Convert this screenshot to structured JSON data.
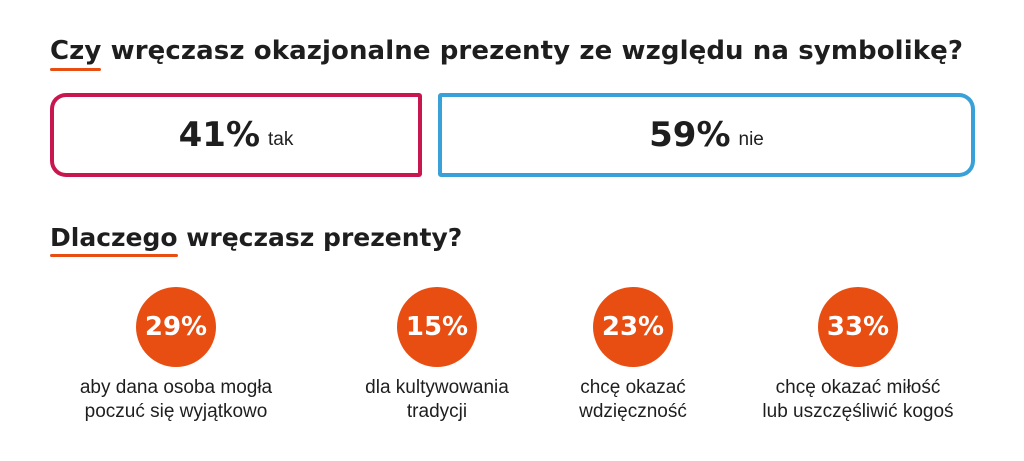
{
  "colors": {
    "tak_border": "#c8174f",
    "nie_border": "#3aa0d8",
    "circle": "#e84e12",
    "underline": "#e84e12",
    "text": "#1e1e1e"
  },
  "question1": {
    "first_word": "Czy",
    "rest": " wręczasz okazjonalne prezenty ze względu na symbolikę?"
  },
  "question2": {
    "first_word": "Dlaczego",
    "rest": " wręczasz prezenty?"
  },
  "chart_data": [
    {
      "type": "bar",
      "title": "Czy wręczasz okazjonalne prezenty ze względu na symbolikę?",
      "categories": [
        "tak",
        "nie"
      ],
      "values": [
        41,
        59
      ],
      "value_labels": [
        "41%",
        "59%"
      ]
    },
    {
      "type": "bar",
      "title": "Dlaczego wręczasz prezenty?",
      "categories": [
        "aby dana osoba mogła\npoczuć się wyjątkowo",
        "dla kultywowania\ntradycji",
        "chcę okazać\nwdzięczność",
        "chcę okazać miłość\nlub uszczęśliwić kogoś"
      ],
      "values": [
        29,
        15,
        23,
        33
      ],
      "value_labels": [
        "29%",
        "15%",
        "23%",
        "33%"
      ]
    }
  ]
}
